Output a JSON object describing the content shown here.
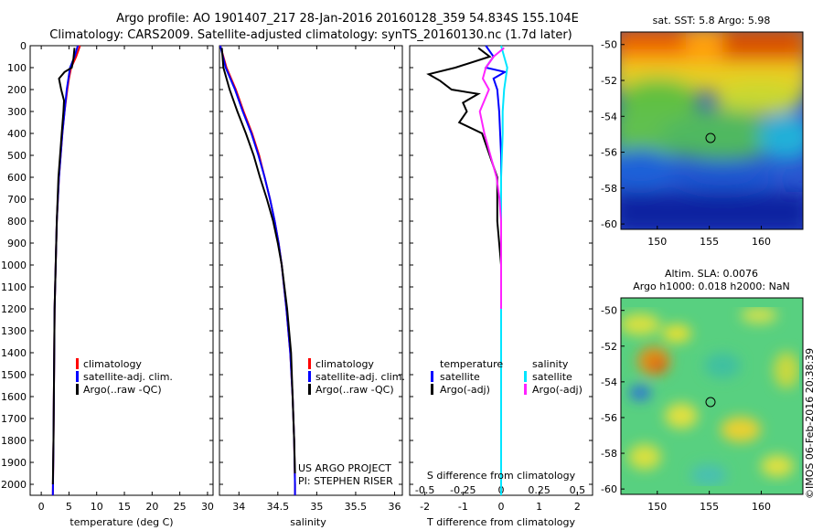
{
  "header": {
    "line1": "Argo profile: AO 1901407_217 28-Jan-2016 20160128_359 54.834S 155.104E",
    "line2": "Climatology: CARS2009. Satellite-adjusted climatology: synTS_20160130.nc (1.7d later)"
  },
  "colors": {
    "climatology": "#ff0000",
    "satellite": "#0000ff",
    "argo": "#000000",
    "sal_satellite": "#00e5ff",
    "sal_argo": "#ff22ff"
  },
  "credit": "©IMOS 06-Feb-2016 20:38:39",
  "chart_data": [
    {
      "type": "line",
      "xlabel": "temperature (deg C)",
      "xlim": [
        -2,
        31
      ],
      "ylim": [
        0,
        2050
      ],
      "yticks": [
        0,
        100,
        200,
        300,
        400,
        500,
        600,
        700,
        800,
        900,
        1000,
        1100,
        1200,
        1300,
        1400,
        1500,
        1600,
        1700,
        1800,
        1900,
        2000
      ],
      "xticks": [
        0,
        5,
        10,
        15,
        20,
        25,
        30
      ],
      "legend": [
        "climatology",
        "satellite-adj. clim.",
        "Argo(..raw -QC)"
      ],
      "series": [
        {
          "name": "climatology",
          "color": "#ff0000",
          "depth": [
            0,
            50,
            100,
            150,
            200,
            300,
            400,
            600,
            800,
            1000,
            1200,
            1500,
            1800,
            2050
          ],
          "values": [
            7.0,
            6.3,
            5.4,
            5.0,
            4.7,
            4.2,
            3.8,
            3.2,
            2.8,
            2.6,
            2.4,
            2.3,
            2.2,
            2.1
          ]
        },
        {
          "name": "satellite-adj. clim.",
          "color": "#0000ff",
          "depth": [
            0,
            50,
            100,
            150,
            200,
            300,
            400,
            600,
            800,
            1000,
            1200,
            1500,
            1800,
            2050
          ],
          "values": [
            6.6,
            6.0,
            5.2,
            4.9,
            4.6,
            4.2,
            3.8,
            3.2,
            2.8,
            2.6,
            2.4,
            2.3,
            2.2,
            2.1
          ]
        },
        {
          "name": "Argo(..raw -QC)",
          "color": "#000000",
          "depth": [
            10,
            60,
            100,
            120,
            150,
            200,
            250,
            300,
            400,
            600,
            800,
            1000,
            1200,
            1500,
            1800,
            2000
          ],
          "values": [
            6.0,
            5.8,
            5.5,
            4.2,
            3.2,
            3.6,
            4.1,
            4.0,
            3.7,
            3.1,
            2.8,
            2.6,
            2.4,
            2.3,
            2.2,
            2.1
          ]
        }
      ]
    },
    {
      "type": "line",
      "xlabel": "salinity",
      "xlim": [
        33.75,
        36.1
      ],
      "ylim": [
        0,
        2050
      ],
      "xticks": [
        34,
        34.5,
        35,
        35.5,
        36
      ],
      "legend": [
        "climatology",
        "satellite-adj. clim.",
        "Argo(..raw -QC)"
      ],
      "annotations": [
        "US ARGO PROJECT",
        "PI: STEPHEN RISER"
      ],
      "series": [
        {
          "name": "climatology",
          "color": "#ff0000",
          "depth": [
            0,
            100,
            200,
            300,
            400,
            500,
            600,
            700,
            800,
            900,
            1000,
            1200,
            1400,
            1600,
            1800,
            2000,
            2050
          ],
          "values": [
            33.76,
            33.84,
            33.96,
            34.06,
            34.17,
            34.26,
            34.33,
            34.4,
            34.46,
            34.51,
            34.55,
            34.61,
            34.66,
            34.69,
            34.71,
            34.72,
            34.72
          ]
        },
        {
          "name": "satellite-adj. clim.",
          "color": "#0000ff",
          "depth": [
            0,
            100,
            200,
            300,
            400,
            500,
            600,
            700,
            800,
            900,
            1000,
            1200,
            1400,
            1600,
            1800,
            2000,
            2050
          ],
          "values": [
            33.76,
            33.83,
            33.95,
            34.05,
            34.16,
            34.25,
            34.33,
            34.4,
            34.46,
            34.51,
            34.55,
            34.61,
            34.66,
            34.69,
            34.71,
            34.72,
            34.72
          ]
        },
        {
          "name": "Argo(..raw -QC)",
          "color": "#000000",
          "depth": [
            10,
            100,
            200,
            300,
            400,
            500,
            600,
            700,
            800,
            900,
            1000,
            1200,
            1400,
            1600,
            1800,
            1950
          ],
          "values": [
            33.78,
            33.8,
            33.88,
            33.98,
            34.09,
            34.19,
            34.27,
            34.36,
            34.44,
            34.5,
            34.55,
            34.62,
            34.67,
            34.69,
            34.71,
            34.72
          ]
        }
      ]
    },
    {
      "type": "line",
      "xlabel": "T difference from climatology",
      "xlabel_top": "S difference from climatology",
      "xlim": [
        -2.4,
        2.4
      ],
      "xticks": [
        -2,
        -1,
        0,
        1,
        2
      ],
      "xticks_top": [
        "-0.5",
        "-0.25",
        "0",
        "0.25",
        "0.5"
      ],
      "legend_titles": [
        "temperature",
        "salinity"
      ],
      "legend": [
        "satellite",
        "Argo(-adj)",
        "satellite",
        "Argo(-adj)"
      ],
      "series": [
        {
          "name": "satellite",
          "color": "#0000ff",
          "depth": [
            0,
            50,
            100,
            120,
            150,
            200,
            300,
            500,
            800,
            1200,
            1600,
            2050
          ],
          "values": [
            -0.4,
            -0.2,
            -0.4,
            0.1,
            -0.2,
            -0.1,
            -0.05,
            0.0,
            0.0,
            0.0,
            0.0,
            0.0
          ]
        },
        {
          "name": "Argo(-adj)",
          "color": "#000000",
          "depth": [
            10,
            50,
            100,
            130,
            160,
            200,
            220,
            260,
            300,
            350,
            400,
            500,
            600,
            800,
            1000,
            1200,
            1500,
            1800,
            2000
          ],
          "values": [
            -0.6,
            -0.3,
            -1.2,
            -1.9,
            -1.6,
            -1.3,
            -0.6,
            -1.0,
            -0.9,
            -1.1,
            -0.5,
            -0.3,
            -0.1,
            -0.1,
            0.0,
            0.0,
            0.0,
            0.0,
            0.0
          ]
        },
        {
          "name": "satellite",
          "color": "#00e5ff",
          "depth": [
            0,
            50,
            100,
            150,
            200,
            300,
            400,
            600,
            800,
            1200,
            1600,
            2050
          ],
          "values": [
            0.0,
            0.02,
            0.04,
            0.03,
            0.02,
            0.01,
            0.01,
            0.0,
            0.0,
            0.0,
            0.0,
            0.0
          ]
        },
        {
          "name": "Argo(-adj)",
          "color": "#ff22ff",
          "depth": [
            10,
            50,
            100,
            150,
            200,
            300,
            400,
            500,
            600,
            700,
            800,
            1000,
            1200
          ],
          "values": [
            0.02,
            -0.05,
            -0.1,
            -0.12,
            -0.08,
            -0.14,
            -0.11,
            -0.07,
            -0.03,
            -0.01,
            0.0,
            0.0,
            0.0
          ]
        }
      ]
    },
    {
      "type": "heatmap",
      "title": "sat. SST: 5.8 Argo: 5.98",
      "xticks": [
        150,
        155,
        160
      ],
      "yticks": [
        -50,
        -52,
        -54,
        -56,
        -58,
        -60
      ],
      "xlim": [
        146.5,
        164
      ],
      "ylim": [
        -60.3,
        -49.3
      ],
      "marker": {
        "lon": 155.1,
        "lat": -54.83
      }
    },
    {
      "type": "heatmap",
      "title": "Altim. SLA: 0.0076",
      "subtitle": "Argo h1000: 0.018 h2000: NaN",
      "xticks": [
        150,
        155,
        160
      ],
      "yticks": [
        -50,
        -52,
        -54,
        -56,
        -58,
        -60
      ],
      "xlim": [
        146.5,
        164
      ],
      "ylim": [
        -60.3,
        -49.3
      ],
      "marker": {
        "lon": 155.1,
        "lat": -54.83
      }
    }
  ]
}
